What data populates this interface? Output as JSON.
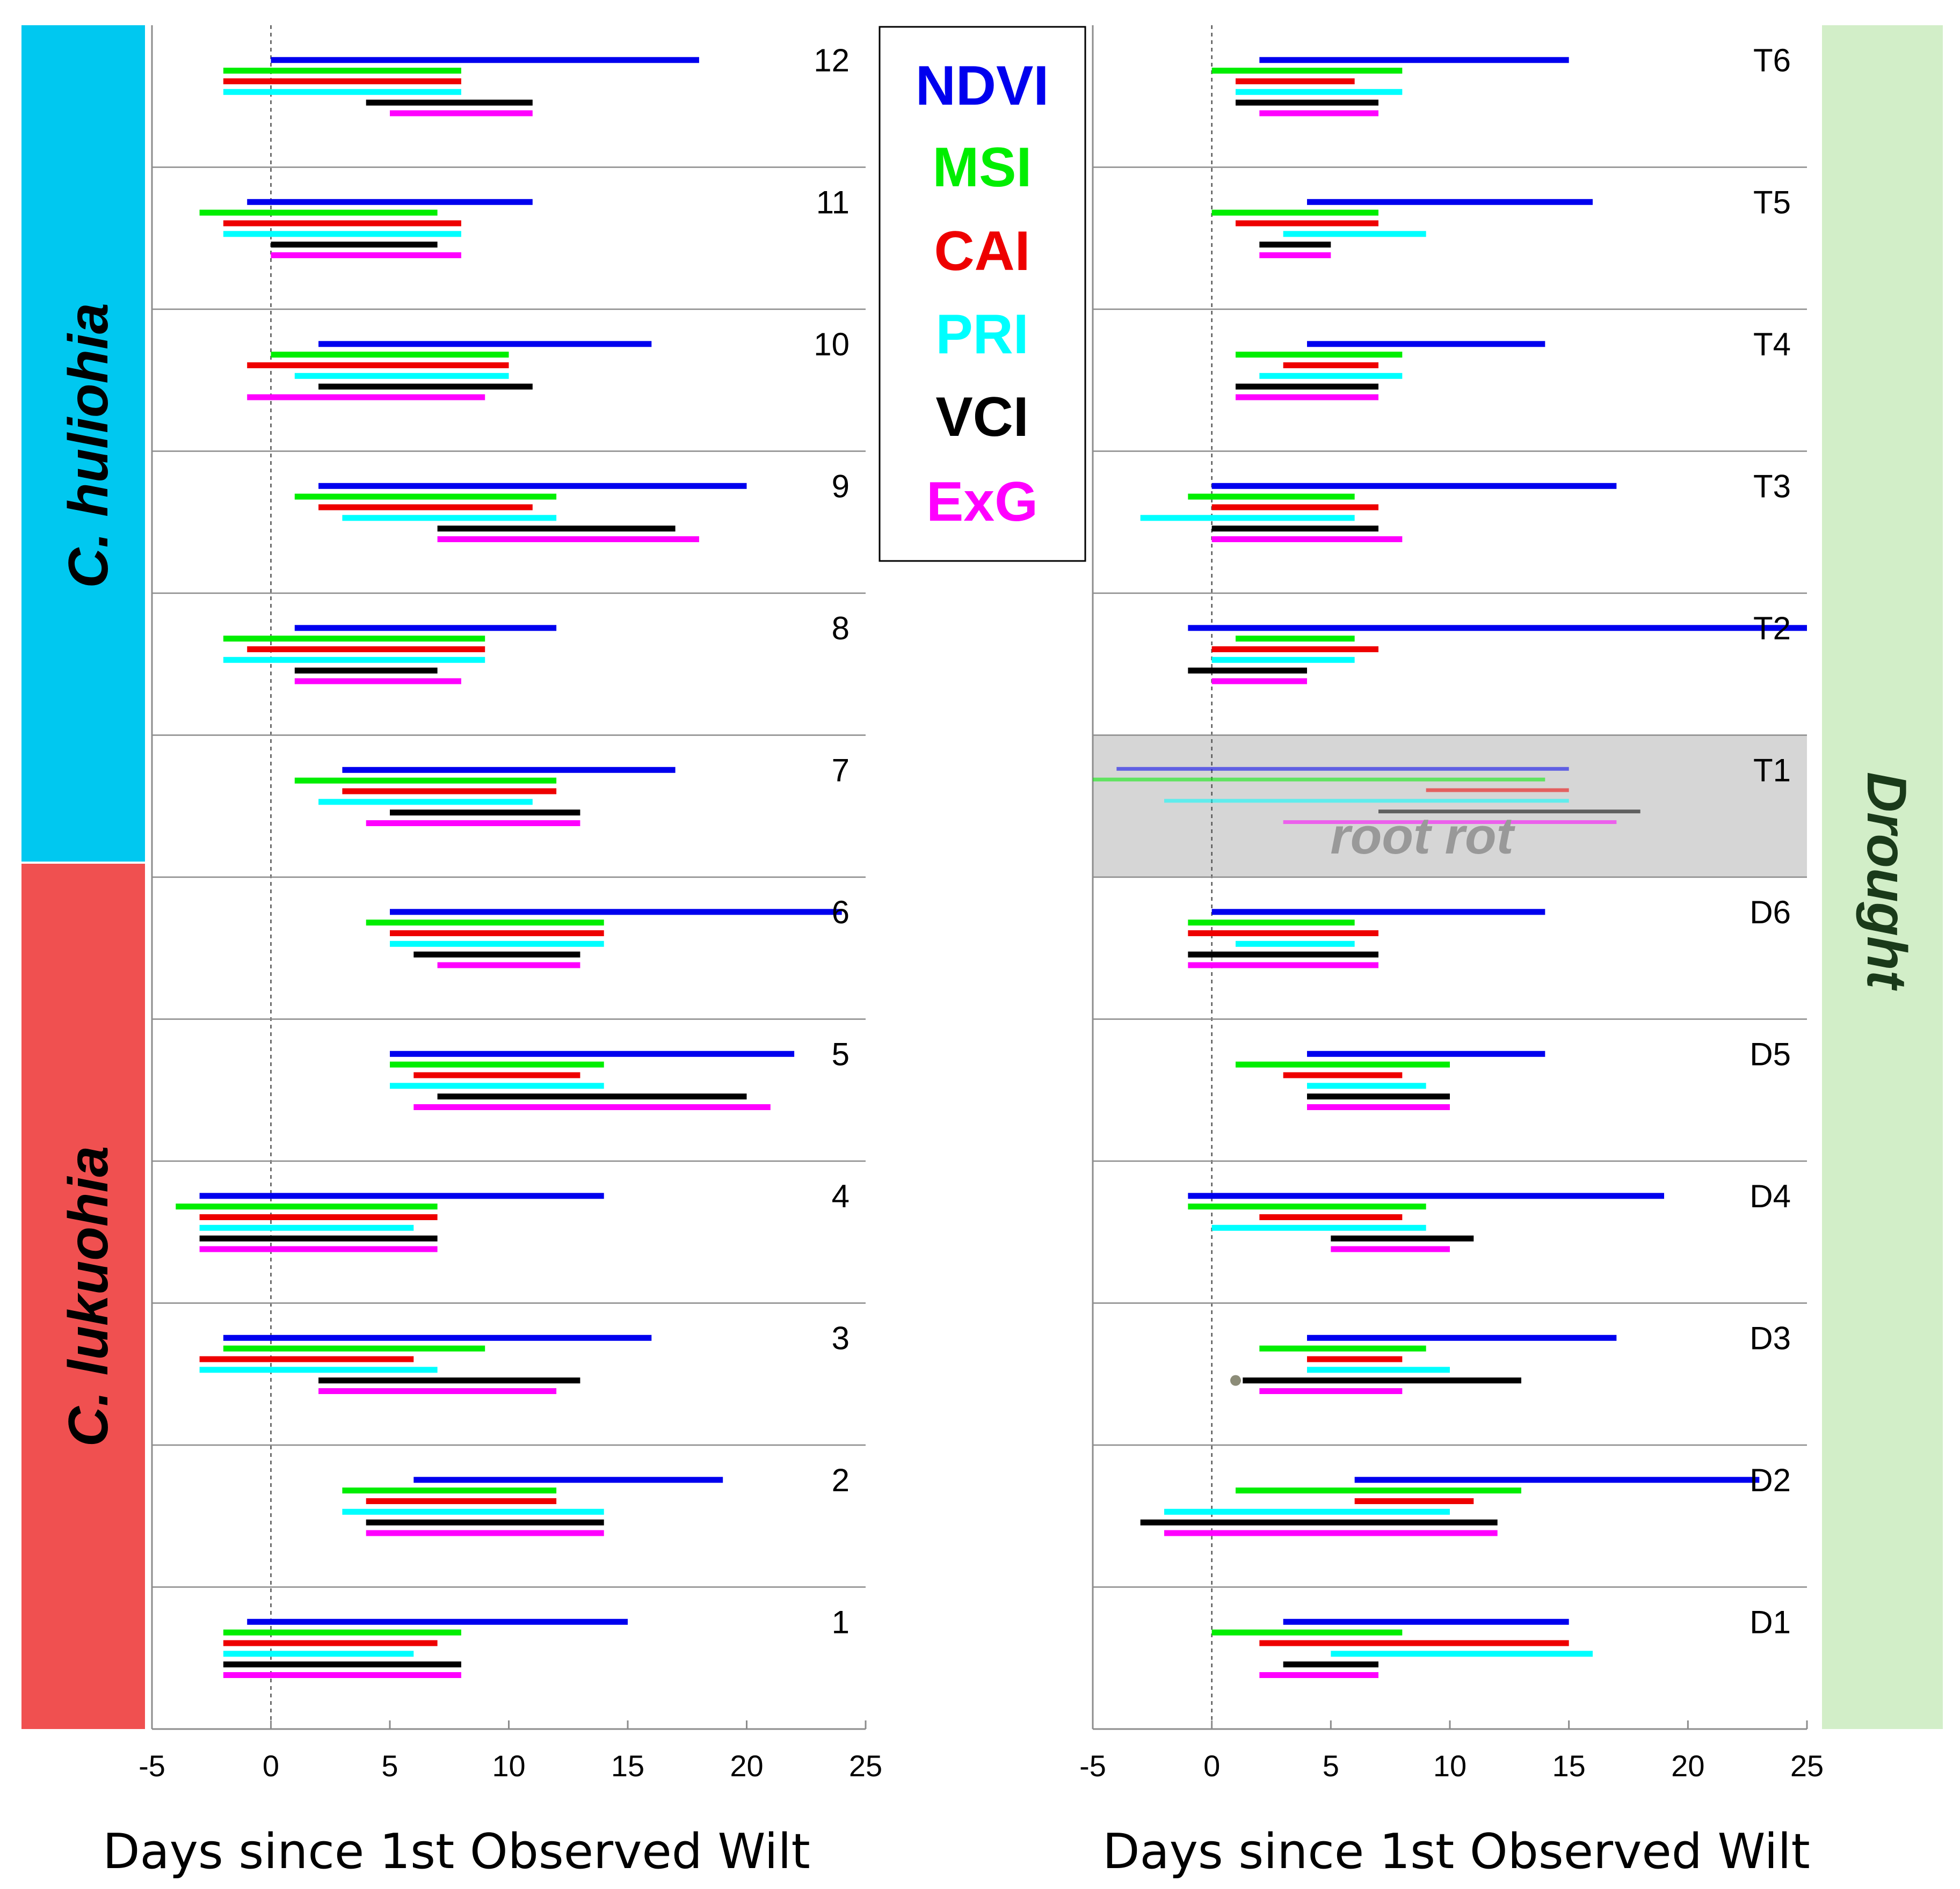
{
  "colors": {
    "NDVI": "#0000ee",
    "MSI": "#00ee00",
    "CAI": "#ee0000",
    "PRI": "#00ffff",
    "VCI": "#000000",
    "ExG": "#ff00ff",
    "huliohia_band": "#00c8f0",
    "lukuohia_band": "#f05050",
    "drought_band": "#d2eec8",
    "root_rot_shade": "#d6d6d6"
  },
  "legend": [
    "NDVI",
    "MSI",
    "CAI",
    "PRI",
    "VCI",
    "ExG"
  ],
  "species": {
    "huliohia": "C. huliohia",
    "lukuohia": "C. lukuohia"
  },
  "treatment_label": "Drought",
  "root_rot_label": "root rot",
  "chart_data": [
    {
      "type": "range-bar",
      "name": "left-panel",
      "xlabel": "Days since 1st Observed Wilt",
      "xlim": [
        -5,
        25
      ],
      "xticks": [
        -5,
        0,
        5,
        10,
        15,
        20,
        25
      ],
      "reference_line_x": 0,
      "indices": [
        "NDVI",
        "MSI",
        "CAI",
        "PRI",
        "VCI",
        "ExG"
      ],
      "rows": [
        {
          "label": "12",
          "group": "huliohia",
          "ranges": [
            [
              0,
              18
            ],
            [
              -2,
              8
            ],
            [
              -2,
              8
            ],
            [
              -2,
              8
            ],
            [
              4,
              11
            ],
            [
              5,
              11
            ]
          ]
        },
        {
          "label": "11",
          "group": "huliohia",
          "ranges": [
            [
              -1,
              11
            ],
            [
              -3,
              7
            ],
            [
              -2,
              8
            ],
            [
              -2,
              8
            ],
            [
              0,
              7
            ],
            [
              0,
              8
            ]
          ]
        },
        {
          "label": "10",
          "group": "huliohia",
          "ranges": [
            [
              2,
              16
            ],
            [
              0,
              10
            ],
            [
              -1,
              10
            ],
            [
              1,
              10
            ],
            [
              2,
              11
            ],
            [
              -1,
              9
            ]
          ]
        },
        {
          "label": "9",
          "group": "huliohia",
          "ranges": [
            [
              2,
              20
            ],
            [
              1,
              12
            ],
            [
              2,
              11
            ],
            [
              3,
              12
            ],
            [
              7,
              17
            ],
            [
              7,
              18
            ]
          ]
        },
        {
          "label": "8",
          "group": "huliohia",
          "ranges": [
            [
              1,
              12
            ],
            [
              -2,
              9
            ],
            [
              -1,
              9
            ],
            [
              -2,
              9
            ],
            [
              1,
              7
            ],
            [
              1,
              8
            ]
          ]
        },
        {
          "label": "7",
          "group": "huliohia",
          "ranges": [
            [
              3,
              17
            ],
            [
              1,
              12
            ],
            [
              3,
              12
            ],
            [
              2,
              11
            ],
            [
              5,
              13
            ],
            [
              4,
              13
            ]
          ]
        },
        {
          "label": "6",
          "group": "lukuohia",
          "ranges": [
            [
              5,
              24
            ],
            [
              4,
              14
            ],
            [
              5,
              14
            ],
            [
              5,
              14
            ],
            [
              6,
              13
            ],
            [
              7,
              13
            ]
          ]
        },
        {
          "label": "5",
          "group": "lukuohia",
          "ranges": [
            [
              5,
              22
            ],
            [
              5,
              14
            ],
            [
              6,
              13
            ],
            [
              5,
              14
            ],
            [
              7,
              20
            ],
            [
              6,
              21
            ]
          ]
        },
        {
          "label": "4",
          "group": "lukuohia",
          "ranges": [
            [
              -3,
              14
            ],
            [
              -4,
              7
            ],
            [
              -3,
              7
            ],
            [
              -3,
              6
            ],
            [
              -3,
              7
            ],
            [
              -3,
              7
            ]
          ]
        },
        {
          "label": "3",
          "group": "lukuohia",
          "ranges": [
            [
              -2,
              16
            ],
            [
              -2,
              9
            ],
            [
              -3,
              6
            ],
            [
              -3,
              7
            ],
            [
              2,
              13
            ],
            [
              2,
              12
            ]
          ]
        },
        {
          "label": "2",
          "group": "lukuohia",
          "ranges": [
            [
              6,
              19
            ],
            [
              3,
              12
            ],
            [
              4,
              12
            ],
            [
              3,
              14
            ],
            [
              4,
              14
            ],
            [
              4,
              14
            ]
          ]
        },
        {
          "label": "1",
          "group": "lukuohia",
          "ranges": [
            [
              -1,
              15
            ],
            [
              -2,
              8
            ],
            [
              -2,
              7
            ],
            [
              -2,
              6
            ],
            [
              -2,
              8
            ],
            [
              -2,
              8
            ]
          ]
        }
      ]
    },
    {
      "type": "range-bar",
      "name": "right-panel",
      "xlabel": "Days since 1st Observed Wilt",
      "xlim": [
        -5,
        25
      ],
      "xticks": [
        -5,
        0,
        5,
        10,
        15,
        20,
        25
      ],
      "reference_line_x": 0,
      "indices": [
        "NDVI",
        "MSI",
        "CAI",
        "PRI",
        "VCI",
        "ExG"
      ],
      "rows": [
        {
          "label": "T6",
          "ranges": [
            [
              2,
              15
            ],
            [
              0,
              8
            ],
            [
              1,
              6
            ],
            [
              1,
              8
            ],
            [
              1,
              7
            ],
            [
              2,
              7
            ]
          ]
        },
        {
          "label": "T5",
          "ranges": [
            [
              4,
              16
            ],
            [
              0,
              7
            ],
            [
              1,
              7
            ],
            [
              3,
              9
            ],
            [
              2,
              5
            ],
            [
              2,
              5
            ]
          ]
        },
        {
          "label": "T4",
          "ranges": [
            [
              4,
              14
            ],
            [
              1,
              8
            ],
            [
              3,
              7
            ],
            [
              2,
              8
            ],
            [
              1,
              7
            ],
            [
              1,
              7
            ]
          ]
        },
        {
          "label": "T3",
          "ranges": [
            [
              0,
              17
            ],
            [
              -1,
              6
            ],
            [
              0,
              7
            ],
            [
              -3,
              6
            ],
            [
              0,
              7
            ],
            [
              0,
              8
            ]
          ]
        },
        {
          "label": "T2",
          "ranges": [
            [
              -1,
              25
            ],
            [
              1,
              6
            ],
            [
              0,
              7
            ],
            [
              0,
              6
            ],
            [
              -1,
              4
            ],
            [
              0,
              4
            ]
          ]
        },
        {
          "label": "T1",
          "root_rot": true,
          "ranges": [
            [
              -4,
              15
            ],
            [
              -5,
              14
            ],
            [
              9,
              15
            ],
            [
              -2,
              15
            ],
            [
              7,
              18
            ],
            [
              3,
              17
            ]
          ]
        },
        {
          "label": "D6",
          "ranges": [
            [
              0,
              14
            ],
            [
              -1,
              6
            ],
            [
              -1,
              7
            ],
            [
              1,
              6
            ],
            [
              -1,
              7
            ],
            [
              -1,
              7
            ]
          ]
        },
        {
          "label": "D5",
          "ranges": [
            [
              4,
              14
            ],
            [
              1,
              10
            ],
            [
              3,
              8
            ],
            [
              4,
              9
            ],
            [
              4,
              10
            ],
            [
              4,
              10
            ]
          ]
        },
        {
          "label": "D4",
          "ranges": [
            [
              -1,
              19
            ],
            [
              -1,
              9
            ],
            [
              2,
              8
            ],
            [
              0,
              9
            ],
            [
              5,
              11
            ],
            [
              5,
              10
            ]
          ]
        },
        {
          "label": "D3",
          "point": 1,
          "ranges": [
            [
              4,
              17
            ],
            [
              2,
              9
            ],
            [
              4,
              8
            ],
            [
              4,
              10
            ],
            [
              1.3,
              13
            ],
            [
              2,
              8
            ]
          ]
        },
        {
          "label": "D2",
          "ranges": [
            [
              6,
              23
            ],
            [
              1,
              13
            ],
            [
              6,
              11
            ],
            [
              -2,
              10
            ],
            [
              -3,
              12
            ],
            [
              -2,
              12
            ]
          ]
        },
        {
          "label": "D1",
          "ranges": [
            [
              3,
              15
            ],
            [
              0,
              8
            ],
            [
              2,
              15
            ],
            [
              5,
              16
            ],
            [
              3,
              7
            ],
            [
              2,
              7
            ]
          ]
        }
      ]
    }
  ]
}
